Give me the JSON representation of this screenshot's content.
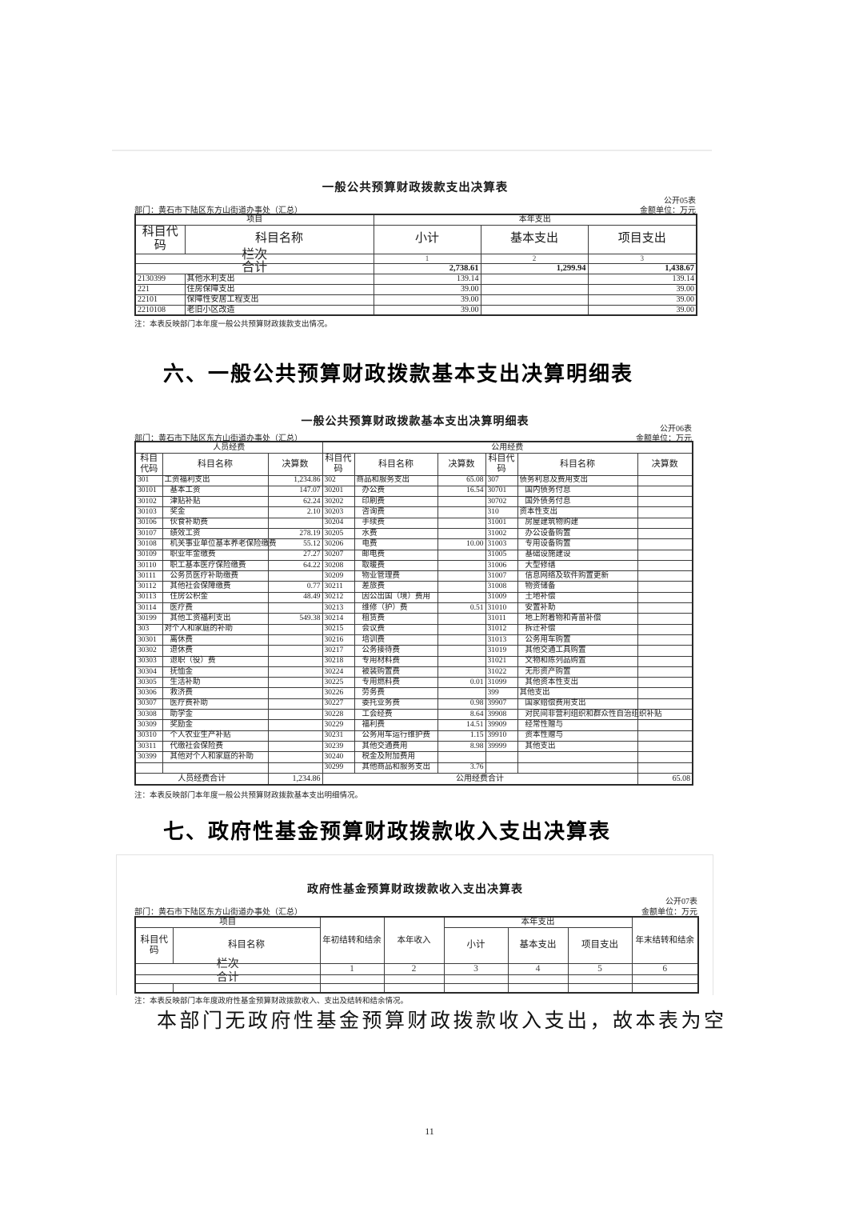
{
  "table05": {
    "title": "一般公共预算财政拨款支出决算表",
    "form_no": "公开05表",
    "dept": "部门：黄石市下陆区东方山街道办事处（汇总）",
    "unit": "金额单位：万元",
    "headers": {
      "project_group": "项目",
      "year_expense_group": "本年支出",
      "code": "科目代码",
      "name": "科目名称",
      "subtotal": "小计",
      "basic": "基本支出",
      "project": "项目支出"
    },
    "lanci_label": "栏次",
    "lanci": [
      "1",
      "2",
      "3"
    ],
    "total_label": "合计",
    "totals": [
      "2,738.61",
      "1,299.94",
      "1,438.67"
    ],
    "rows": [
      {
        "code": "2130399",
        "name": "其他水利支出",
        "subtotal": "139.14",
        "basic": "",
        "project": "139.14"
      },
      {
        "code": "221",
        "name": "住房保障支出",
        "subtotal": "39.00",
        "basic": "",
        "project": "39.00"
      },
      {
        "code": "22101",
        "name": "保障性安居工程支出",
        "subtotal": "39.00",
        "basic": "",
        "project": "39.00"
      },
      {
        "code": "2210108",
        "name": "老旧小区改造",
        "subtotal": "39.00",
        "basic": "",
        "project": "39.00"
      }
    ],
    "note": "注：本表反映部门本年度一般公共预算财政拨款支出情况。"
  },
  "section6": {
    "title": "六、一般公共预算财政拨款基本支出决算明细表"
  },
  "table06": {
    "title": "一般公共预算财政拨款基本支出决算明细表",
    "form_no": "公开06表",
    "dept": "部门：黄石市下陆区东方山街道办事处（汇总）",
    "unit": "金额单位：万元",
    "headers": {
      "group1": "人员经费",
      "group2": "公用经费",
      "code": "科目代码",
      "name": "科目名称",
      "value": "决算数"
    },
    "rows": [
      [
        "301",
        "工资福利支出",
        "1,234.86",
        "302",
        "商品和服务支出",
        "65.08",
        "307",
        "债务利息及费用支出",
        ""
      ],
      [
        "30101",
        "基本工资",
        "147.07",
        "30201",
        "办公费",
        "16.54",
        "30701",
        "国内债务付息",
        ""
      ],
      [
        "30102",
        "津贴补贴",
        "62.24",
        "30202",
        "印刷费",
        "",
        "30702",
        "国外债务付息",
        ""
      ],
      [
        "30103",
        "奖金",
        "2.10",
        "30203",
        "咨询费",
        "",
        "310",
        "资本性支出",
        ""
      ],
      [
        "30106",
        "伙食补助费",
        "",
        "30204",
        "手续费",
        "",
        "31001",
        "房屋建筑物购建",
        ""
      ],
      [
        "30107",
        "绩效工资",
        "278.19",
        "30205",
        "水费",
        "",
        "31002",
        "办公设备购置",
        ""
      ],
      [
        "30108",
        "机关事业单位基本养老保险缴费",
        "55.12",
        "30206",
        "电费",
        "10.00",
        "31003",
        "专用设备购置",
        ""
      ],
      [
        "30109",
        "职业年金缴费",
        "27.27",
        "30207",
        "邮电费",
        "",
        "31005",
        "基础设施建设",
        ""
      ],
      [
        "30110",
        "职工基本医疗保险缴费",
        "64.22",
        "30208",
        "取暖费",
        "",
        "31006",
        "大型修缮",
        ""
      ],
      [
        "30111",
        "公务员医疗补助缴费",
        "",
        "30209",
        "物业管理费",
        "",
        "31007",
        "信息网络及软件购置更新",
        ""
      ],
      [
        "30112",
        "其他社会保障缴费",
        "0.77",
        "30211",
        "差旅费",
        "",
        "31008",
        "物资储备",
        ""
      ],
      [
        "30113",
        "住房公积金",
        "48.49",
        "30212",
        "因公出国（境）费用",
        "",
        "31009",
        "土地补偿",
        ""
      ],
      [
        "30114",
        "医疗费",
        "",
        "30213",
        "维修（护）费",
        "0.51",
        "31010",
        "安置补助",
        ""
      ],
      [
        "30199",
        "其他工资福利支出",
        "549.38",
        "30214",
        "租赁费",
        "",
        "31011",
        "地上附着物和青苗补偿",
        ""
      ],
      [
        "303",
        "对个人和家庭的补助",
        "",
        "30215",
        "会议费",
        "",
        "31012",
        "拆迁补偿",
        ""
      ],
      [
        "30301",
        "离休费",
        "",
        "30216",
        "培训费",
        "",
        "31013",
        "公务用车购置",
        ""
      ],
      [
        "30302",
        "退休费",
        "",
        "30217",
        "公务接待费",
        "",
        "31019",
        "其他交通工具购置",
        ""
      ],
      [
        "30303",
        "退职（役）费",
        "",
        "30218",
        "专用材料费",
        "",
        "31021",
        "文物和陈列品购置",
        ""
      ],
      [
        "30304",
        "抚恤金",
        "",
        "30224",
        "被装购置费",
        "",
        "31022",
        "无形资产购置",
        ""
      ],
      [
        "30305",
        "生活补助",
        "",
        "30225",
        "专用燃料费",
        "0.01",
        "31099",
        "其他资本性支出",
        ""
      ],
      [
        "30306",
        "救济费",
        "",
        "30226",
        "劳务费",
        "",
        "399",
        "其他支出",
        ""
      ],
      [
        "30307",
        "医疗费补助",
        "",
        "30227",
        "委托业务费",
        "0.98",
        "39907",
        "国家赔偿费用支出",
        ""
      ],
      [
        "30308",
        "助学金",
        "",
        "30228",
        "工会经费",
        "8.64",
        "39908",
        "对民间非营利组织和群众性自治组织补贴",
        ""
      ],
      [
        "30309",
        "奖励金",
        "",
        "30229",
        "福利费",
        "14.51",
        "39909",
        "经常性赠与",
        ""
      ],
      [
        "30310",
        "个人农业生产补贴",
        "",
        "30231",
        "公务用车运行维护费",
        "1.15",
        "39910",
        "资本性赠与",
        ""
      ],
      [
        "30311",
        "代缴社会保险费",
        "",
        "30239",
        "其他交通费用",
        "8.98",
        "39999",
        "其他支出",
        ""
      ],
      [
        "30399",
        "其他对个人和家庭的补助",
        "",
        "30240",
        "税金及附加费用",
        "",
        "",
        "",
        ""
      ],
      [
        "",
        "",
        "",
        "30299",
        "其他商品和服务支出",
        "3.76",
        "",
        "",
        ""
      ]
    ],
    "footer": {
      "label1": "人员经费合计",
      "value1": "1,234.86",
      "label2": "公用经费合计",
      "value2": "65.08"
    },
    "note": "注：本表反映部门本年度一般公共预算财政拨款基本支出明细情况。"
  },
  "section7": {
    "title": "七、政府性基金预算财政拨款收入支出决算表"
  },
  "table07": {
    "title": "政府性基金预算财政拨款收入支出决算表",
    "form_no": "公开07表",
    "dept": "部门：黄石市下陆区东方山街道办事处（汇总）",
    "unit": "金额单位：万元",
    "headers": {
      "project_group": "项目",
      "begin_balance": "年初结转和结余",
      "year_income": "本年收入",
      "year_expense_group": "本年支出",
      "subtotal": "小计",
      "basic": "基本支出",
      "project": "项目支出",
      "end_balance": "年末结转和结余",
      "code": "科目代码",
      "name": "科目名称"
    },
    "lanci_label": "栏次",
    "lanci": [
      "1",
      "2",
      "3",
      "4",
      "5",
      "6"
    ],
    "total_label": "合计",
    "note": "注：本表反映部门本年度政府性基金预算财政拨款收入、支出及结转和结余情况。"
  },
  "closing_text": "本部门无政府性基金预算财政拨款收入支出，故本表为空",
  "page_number": "11"
}
